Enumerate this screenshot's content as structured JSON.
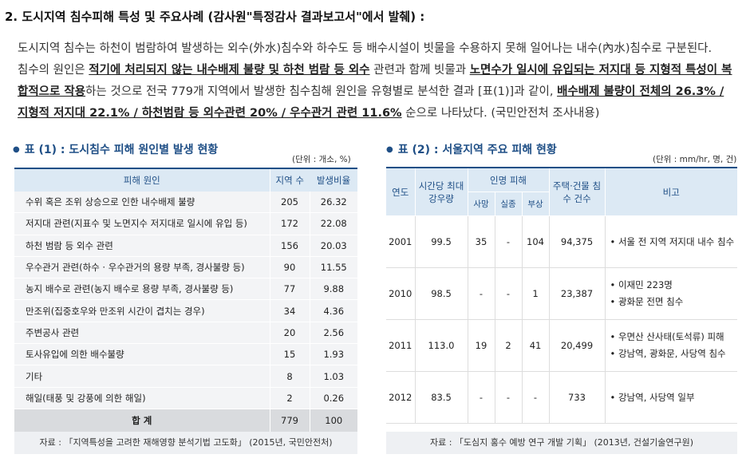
{
  "heading": "2. 도시지역 침수피해 특성 및 주요사례 (감사원\"특정감사 결과보고서\"에서 발췌) :",
  "paragraph": {
    "p1": "도시지역 침수는 하천이 범람하여 발생하는 외수(外水)침수와 하수도 등 배수시설이 빗물을 수용하지 못해 일어나는 내수(內水)침수로 구분된다.",
    "p2a": "침수의 원인은 ",
    "p2b": "적기에 처리되지 않는 내수배제 불량 및 하천 범람 등 외수",
    "p2c": " 관련과 함께 빗물과 ",
    "p2d": "노면수가 일시에 유입되는 저지대 등 지형적 특성이 복합적으로 작용",
    "p2e": "하는 것으로 전국 779개 지역에서 발생한 침수침해 원인을 유형별로 분석한 결과 [표(1)]과 같이, ",
    "p2f": "배수배제 불량이 전체의 26.3% / 지형적 저지대 22.1% / 하천범람 등 외수관련 20% / 우수관거 관련 11.6%",
    "p2g": " 순으로 나타났다. (국민안전처 조사내용)"
  },
  "table1": {
    "title": "표 (1) : 도시침수 피해 원인별 발생 현황",
    "unit": "(단위 : 개소, %)",
    "headers": [
      "피해 원인",
      "지역 수",
      "발생비율"
    ],
    "rows": [
      [
        "수위 혹은 조위 상승으로 인한 내수배제 불량",
        "205",
        "26.32"
      ],
      [
        "저지대 관련(지표수 및 노면지수 저지대로 일시에 유입 등)",
        "172",
        "22.08"
      ],
      [
        "하천 범람 등 외수 관련",
        "156",
        "20.03"
      ],
      [
        "우수관거 관련(하수 · 우수관거의 용량 부족, 경사불량 등)",
        "90",
        "11.55"
      ],
      [
        "농지 배수로 관련(농지 배수로 용량 부족, 경사불량 등)",
        "77",
        "9.88"
      ],
      [
        "만조위(집중호우와 만조위 시간이 겹치는 경우)",
        "34",
        "4.36"
      ],
      [
        "주변공사 관련",
        "20",
        "2.56"
      ],
      [
        "토사유입에 의한 배수불량",
        "15",
        "1.93"
      ],
      [
        "기타",
        "8",
        "1.03"
      ],
      [
        "해일(태풍 및 강풍에 의한 해일)",
        "2",
        "0.26"
      ]
    ],
    "total": [
      "합 계",
      "779",
      "100"
    ],
    "source": "자료 : 「지역특성을 고려한 재해영향 분석기법 고도화」 (2015년, 국민안전처)"
  },
  "table2": {
    "title": "표 (2) : 서울지역 주요 피해 현황",
    "unit": "(단위 : mm/hr, 명, 건)",
    "headers": {
      "year": "연도",
      "rain": "시간당 최대강우량",
      "casualty": "인명 피해",
      "dead": "사망",
      "missing": "실종",
      "injured": "부상",
      "houses": "주택·건물 침수 건수",
      "note": "비고"
    },
    "rows": [
      {
        "year": "2001",
        "rain": "99.5",
        "dead": "35",
        "missing": "-",
        "injured": "104",
        "houses": "94,375",
        "notes": [
          "• 서울 전 지역 저지대 내수 침수"
        ]
      },
      {
        "year": "2010",
        "rain": "98.5",
        "dead": "-",
        "missing": "-",
        "injured": "1",
        "houses": "23,387",
        "notes": [
          "• 이재민 223명",
          "• 광화문 전면 침수"
        ]
      },
      {
        "year": "2011",
        "rain": "113.0",
        "dead": "19",
        "missing": "2",
        "injured": "41",
        "houses": "20,499",
        "notes": [
          "• 우면산 산사태(토석류) 피해",
          "• 강남역, 광화문, 사당역 침수"
        ]
      },
      {
        "year": "2012",
        "rain": "83.5",
        "dead": "-",
        "missing": "-",
        "injured": "-",
        "houses": "733",
        "notes": [
          "• 강남역, 사당역 일부"
        ]
      }
    ],
    "source": "자료 : 「도심지 홍수 예방 연구 개발 기획」 (2013년, 건설기술연구원)"
  }
}
